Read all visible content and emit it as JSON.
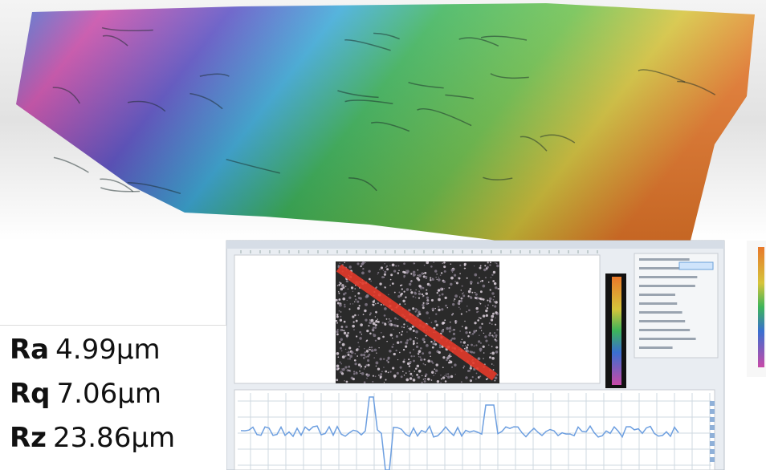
{
  "roughness": [
    {
      "label": "Ra",
      "value": "4.99µm"
    },
    {
      "label": "Rq",
      "value": "7.06µm"
    },
    {
      "label": "Rz",
      "value": "23.86µm"
    }
  ]
}
